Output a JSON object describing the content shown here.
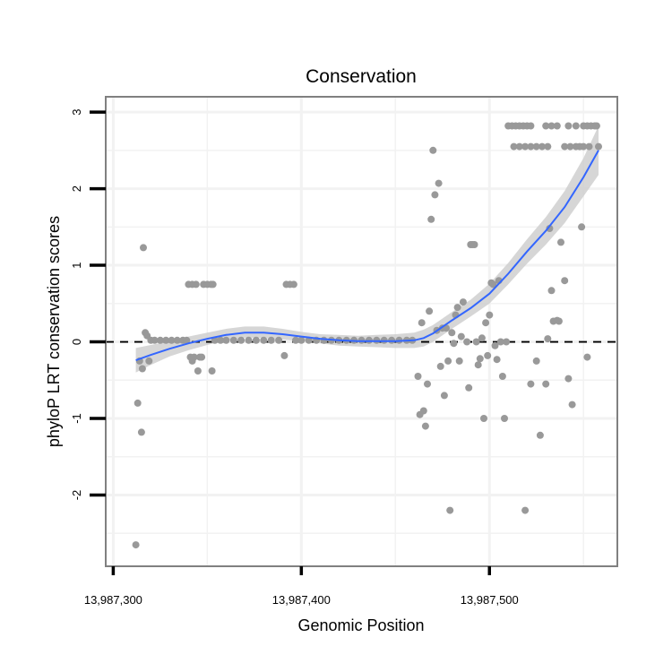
{
  "chart_data": {
    "type": "scatter",
    "title": "Conservation",
    "xlabel": "Genomic Position",
    "ylabel": "phyloP LRT conservation scores",
    "xlim": [
      13987296,
      13987568
    ],
    "ylim": [
      -2.93,
      3.2
    ],
    "x_ticks": [
      13987300,
      13987400,
      13987500
    ],
    "x_tick_labels": [
      "13,987,300",
      "13,987,400",
      "13,987,500"
    ],
    "y_ticks": [
      -2,
      -1,
      0,
      1,
      2,
      3
    ],
    "y_tick_labels": [
      "-2",
      "-1",
      "0",
      "1",
      "2",
      "3"
    ],
    "x_minor_ticks": [
      13987350,
      13987450,
      13987550
    ],
    "y_minor_ticks": [
      -2.5,
      -1.5,
      -0.5,
      0.5,
      1.5,
      2.5
    ],
    "grid": true,
    "reference_line": {
      "y": 0,
      "style": "dashed",
      "color": "#000000"
    },
    "colors": {
      "points": "#999999",
      "smooth": "#3366ff",
      "band": "#cccccc",
      "panel_border": "#808080",
      "grid": "#f2f2f2"
    },
    "points": [
      [
        13987312,
        -2.65
      ],
      [
        13987313,
        -0.8
      ],
      [
        13987314,
        -0.25
      ],
      [
        13987315,
        -1.18
      ],
      [
        13987315.5,
        -0.35
      ],
      [
        13987316,
        1.23
      ],
      [
        13987317,
        0.12
      ],
      [
        13987318,
        0.08
      ],
      [
        13987319,
        -0.25
      ],
      [
        13987320,
        0.02
      ],
      [
        13987322,
        0.02
      ],
      [
        13987325,
        0.02
      ],
      [
        13987328,
        0.02
      ],
      [
        13987331,
        0.02
      ],
      [
        13987334,
        0.02
      ],
      [
        13987337,
        0.02
      ],
      [
        13987339,
        0.02
      ],
      [
        13987340,
        0.75
      ],
      [
        13987342,
        0.75
      ],
      [
        13987344,
        0.75
      ],
      [
        13987341,
        -0.2
      ],
      [
        13987342,
        -0.25
      ],
      [
        13987343,
        -0.2
      ],
      [
        13987345,
        -0.38
      ],
      [
        13987346,
        -0.2
      ],
      [
        13987347,
        -0.2
      ],
      [
        13987348,
        0.75
      ],
      [
        13987350,
        0.75
      ],
      [
        13987352,
        0.75
      ],
      [
        13987353,
        0.75
      ],
      [
        13987352.5,
        -0.38
      ],
      [
        13987354,
        0.02
      ],
      [
        13987357,
        0.02
      ],
      [
        13987360,
        0.02
      ],
      [
        13987364,
        0.02
      ],
      [
        13987368,
        0.02
      ],
      [
        13987372,
        0.02
      ],
      [
        13987376,
        0.02
      ],
      [
        13987380,
        0.02
      ],
      [
        13987384,
        0.02
      ],
      [
        13987388,
        0.02
      ],
      [
        13987391,
        -0.18
      ],
      [
        13987392,
        0.75
      ],
      [
        13987394,
        0.75
      ],
      [
        13987396,
        0.75
      ],
      [
        13987397,
        0.02
      ],
      [
        13987400,
        0.02
      ],
      [
        13987404,
        0.02
      ],
      [
        13987408,
        0.02
      ],
      [
        13987412,
        0.02
      ],
      [
        13987416,
        0.02
      ],
      [
        13987420,
        0.02
      ],
      [
        13987424,
        0.02
      ],
      [
        13987428,
        0.02
      ],
      [
        13987432,
        0.02
      ],
      [
        13987436,
        0.02
      ],
      [
        13987440,
        0.02
      ],
      [
        13987444,
        0.02
      ],
      [
        13987448,
        0.02
      ],
      [
        13987452,
        0.02
      ],
      [
        13987456,
        0.02
      ],
      [
        13987459,
        0.02
      ],
      [
        13987462,
        -0.45
      ],
      [
        13987463,
        -0.95
      ],
      [
        13987464,
        0.25
      ],
      [
        13987465,
        -0.9
      ],
      [
        13987466,
        -1.1
      ],
      [
        13987467,
        -0.55
      ],
      [
        13987468,
        0.4
      ],
      [
        13987469,
        1.6
      ],
      [
        13987470,
        2.5
      ],
      [
        13987471,
        1.92
      ],
      [
        13987472,
        0.15
      ],
      [
        13987473,
        2.07
      ],
      [
        13987474,
        -0.32
      ],
      [
        13987475,
        0.18
      ],
      [
        13987476,
        -0.7
      ],
      [
        13987477,
        0.18
      ],
      [
        13987478,
        -0.25
      ],
      [
        13987479,
        -2.2
      ],
      [
        13987480,
        0.12
      ],
      [
        13987481,
        -0.02
      ],
      [
        13987482,
        0.35
      ],
      [
        13987483,
        0.45
      ],
      [
        13987484,
        -0.25
      ],
      [
        13987485,
        0.07
      ],
      [
        13987486,
        0.52
      ],
      [
        13987488,
        0.0
      ],
      [
        13987489,
        -0.6
      ],
      [
        13987490,
        1.27
      ],
      [
        13987491,
        1.27
      ],
      [
        13987492,
        1.27
      ],
      [
        13987493,
        0.0
      ],
      [
        13987494,
        -0.3
      ],
      [
        13987495,
        -0.22
      ],
      [
        13987496,
        0.05
      ],
      [
        13987497,
        -1.0
      ],
      [
        13987498,
        0.25
      ],
      [
        13987499,
        -0.18
      ],
      [
        13987500,
        0.35
      ],
      [
        13987501,
        0.77
      ],
      [
        13987502,
        0.75
      ],
      [
        13987503,
        -0.05
      ],
      [
        13987504,
        -0.23
      ],
      [
        13987505,
        0.8
      ],
      [
        13987506,
        0.0
      ],
      [
        13987507,
        -0.45
      ],
      [
        13987508,
        -1.0
      ],
      [
        13987509,
        0.0
      ],
      [
        13987510,
        2.82
      ],
      [
        13987512,
        2.82
      ],
      [
        13987514,
        2.82
      ],
      [
        13987516,
        2.82
      ],
      [
        13987518,
        2.82
      ],
      [
        13987520,
        2.82
      ],
      [
        13987522,
        2.82
      ],
      [
        13987513,
        2.55
      ],
      [
        13987516,
        2.55
      ],
      [
        13987519,
        2.55
      ],
      [
        13987522,
        2.55
      ],
      [
        13987525,
        2.55
      ],
      [
        13987528,
        2.55
      ],
      [
        13987531,
        2.55
      ],
      [
        13987530,
        2.82
      ],
      [
        13987533,
        2.82
      ],
      [
        13987536,
        2.82
      ],
      [
        13987519,
        -2.2
      ],
      [
        13987522,
        -0.55
      ],
      [
        13987525,
        -0.25
      ],
      [
        13987527,
        -1.22
      ],
      [
        13987530,
        -0.55
      ],
      [
        13987531,
        0.04
      ],
      [
        13987532,
        1.48
      ],
      [
        13987533,
        0.67
      ],
      [
        13987534,
        0.27
      ],
      [
        13987536,
        0.28
      ],
      [
        13987537,
        0.27
      ],
      [
        13987538,
        1.3
      ],
      [
        13987540,
        0.8
      ],
      [
        13987540,
        2.55
      ],
      [
        13987543,
        2.55
      ],
      [
        13987542,
        -0.48
      ],
      [
        13987542,
        2.82
      ],
      [
        13987546,
        2.82
      ],
      [
        13987544,
        -0.82
      ],
      [
        13987546,
        2.55
      ],
      [
        13987548,
        2.55
      ],
      [
        13987549,
        1.5
      ],
      [
        13987550,
        2.82
      ],
      [
        13987550,
        2.55
      ],
      [
        13987552,
        -0.2
      ],
      [
        13987552,
        2.82
      ],
      [
        13987553,
        2.55
      ],
      [
        13987554,
        2.82
      ],
      [
        13987556,
        2.82
      ],
      [
        13987557,
        2.82
      ],
      [
        13987558,
        2.55
      ]
    ],
    "smooth": {
      "x": [
        13987312,
        13987320,
        13987330,
        13987340,
        13987350,
        13987360,
        13987370,
        13987380,
        13987390,
        13987400,
        13987410,
        13987420,
        13987430,
        13987440,
        13987450,
        13987460,
        13987465,
        13987470,
        13987480,
        13987490,
        13987500,
        13987510,
        13987520,
        13987530,
        13987540,
        13987550,
        13987558
      ],
      "y": [
        -0.24,
        -0.17,
        -0.09,
        -0.02,
        0.04,
        0.09,
        0.12,
        0.12,
        0.1,
        0.07,
        0.04,
        0.02,
        0.01,
        0.01,
        0.01,
        0.02,
        0.05,
        0.11,
        0.28,
        0.44,
        0.63,
        0.89,
        1.18,
        1.45,
        1.76,
        2.15,
        2.5
      ],
      "lower": [
        -0.4,
        -0.3,
        -0.19,
        -0.11,
        -0.04,
        0.02,
        0.05,
        0.05,
        0.03,
        0.01,
        -0.02,
        -0.05,
        -0.06,
        -0.07,
        -0.08,
        -0.08,
        -0.06,
        0.0,
        0.17,
        0.33,
        0.5,
        0.75,
        1.02,
        1.27,
        1.55,
        1.9,
        2.18
      ],
      "upper": [
        -0.08,
        -0.04,
        0.01,
        0.07,
        0.12,
        0.17,
        0.2,
        0.2,
        0.17,
        0.13,
        0.1,
        0.09,
        0.08,
        0.09,
        0.1,
        0.12,
        0.16,
        0.22,
        0.39,
        0.55,
        0.76,
        1.03,
        1.34,
        1.63,
        1.97,
        2.4,
        2.82
      ]
    }
  }
}
